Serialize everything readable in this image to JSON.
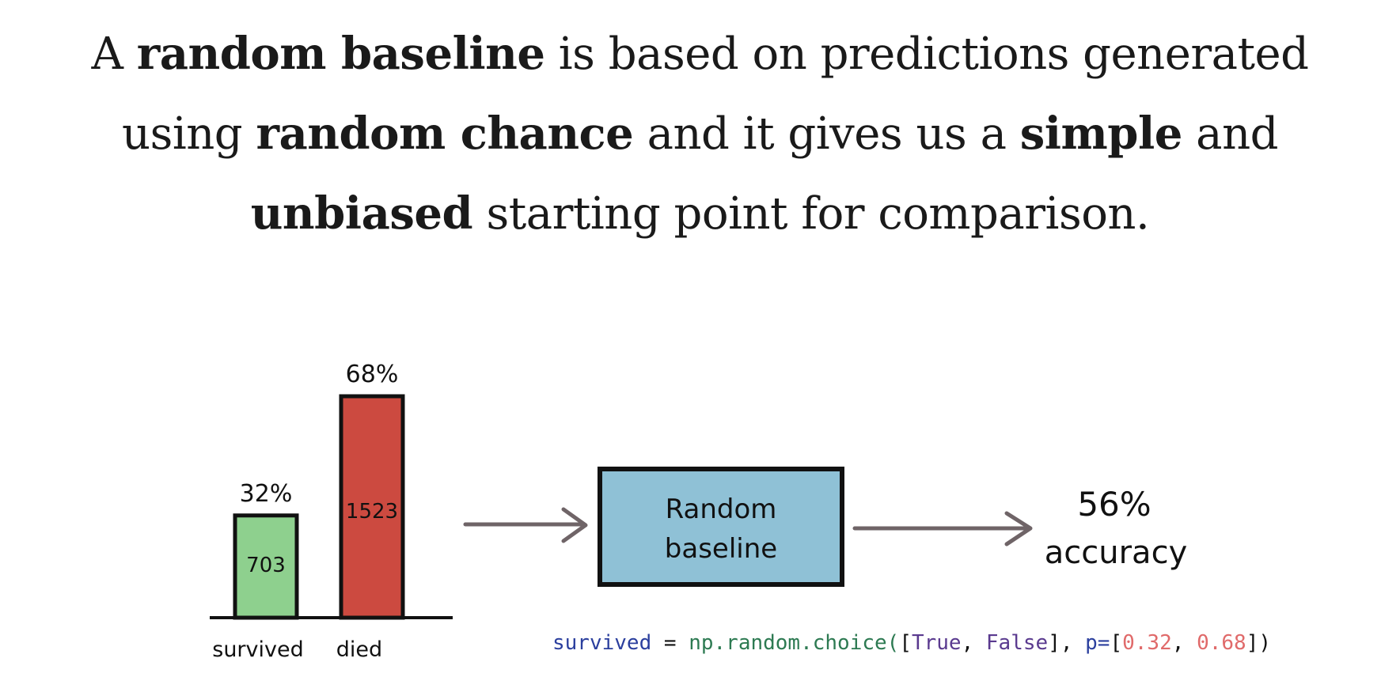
{
  "headline": {
    "part1": "A ",
    "bold1": "random baseline",
    "part2": " is based on predictions generated",
    "part3": "using ",
    "bold2": "random chance",
    "part4": " and it gives us a ",
    "bold3": "simple",
    "part5": " and",
    "bold4": "unbiased",
    "part6": " starting point for comparison."
  },
  "chart_data": {
    "type": "bar",
    "categories": [
      "survived",
      "died"
    ],
    "values": [
      703,
      1523
    ],
    "percent_labels": [
      "32%",
      "68%"
    ],
    "colors": [
      "#8ed08e",
      "#cc4a40"
    ]
  },
  "box": {
    "line1": "Random",
    "line2": "baseline",
    "color": "#8fc1d6"
  },
  "result": {
    "value": "56%",
    "label": "accuracy"
  },
  "code": {
    "var": "survived",
    "eq": " = ",
    "func": "np.random.choice(",
    "open": "[",
    "true_val": "True",
    "comma1": ", ",
    "false_val": "False",
    "close": "], ",
    "p": "p=",
    "open2": "[",
    "p1": "0.32",
    "comma2": ", ",
    "p2": "0.68",
    "close2": "])",
    "colors": {
      "var": "#2b3f9e",
      "func": "#2d7a52",
      "bool": "#5a3a8f",
      "num": "#e06a6a",
      "p": "#2b3f9e",
      "punct": "#111111"
    }
  }
}
